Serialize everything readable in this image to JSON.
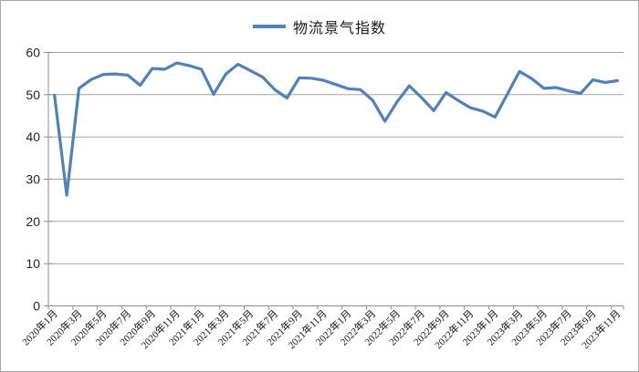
{
  "legend": {
    "label": "物流景气指数"
  },
  "colors": {
    "line": "#4f81bd",
    "grid": "#a3a3a3",
    "axis": "#8c8c8c",
    "text": "#262626",
    "frame_border": "#a6a6a6"
  },
  "chart_data": {
    "type": "line",
    "title": "",
    "xlabel": "",
    "ylabel": "",
    "ylim": [
      0,
      60
    ],
    "y_ticks": [
      0,
      10,
      20,
      30,
      40,
      50,
      60
    ],
    "grid": true,
    "legend_position": "top-center",
    "x": [
      "2020年1月",
      "2020年2月",
      "2020年3月",
      "2020年4月",
      "2020年5月",
      "2020年6月",
      "2020年7月",
      "2020年8月",
      "2020年9月",
      "2020年10月",
      "2020年11月",
      "2020年12月",
      "2021年1月",
      "2021年2月",
      "2021年3月",
      "2021年4月",
      "2021年5月",
      "2021年6月",
      "2021年7月",
      "2021年8月",
      "2021年9月",
      "2021年10月",
      "2021年11月",
      "2021年12月",
      "2022年1月",
      "2022年2月",
      "2022年3月",
      "2022年4月",
      "2022年5月",
      "2022年6月",
      "2022年7月",
      "2022年8月",
      "2022年9月",
      "2022年10月",
      "2022年11月",
      "2022年12月",
      "2023年1月",
      "2023年2月",
      "2023年3月",
      "2023年4月",
      "2023年5月",
      "2023年6月",
      "2023年7月",
      "2023年8月",
      "2023年9月",
      "2023年10月",
      "2023年11月"
    ],
    "x_tick_labels": [
      "2020年1月",
      "2020年3月",
      "2020年5月",
      "2020年7月",
      "2020年9月",
      "2020年11月",
      "2021年1月",
      "2021年3月",
      "2021年5月",
      "2021年7月",
      "2021年9月",
      "2021年11月",
      "2022年1月",
      "2022年3月",
      "2022年5月",
      "2022年7月",
      "2022年9月",
      "2022年11月",
      "2023年1月",
      "2023年3月",
      "2023年5月",
      "2023年7月",
      "2023年9月",
      "2023年11月"
    ],
    "series": [
      {
        "name": "物流景气指数",
        "values": [
          49.9,
          26.2,
          51.5,
          53.6,
          54.8,
          54.9,
          54.6,
          52.2,
          56.2,
          56.0,
          57.5,
          56.9,
          56.0,
          50.1,
          54.9,
          57.2,
          55.7,
          54.2,
          51.2,
          49.2,
          54.0,
          53.9,
          53.4,
          52.4,
          51.4,
          51.2,
          48.7,
          43.7,
          48.3,
          52.1,
          49.3,
          46.2,
          50.5,
          48.6,
          46.9,
          46.1,
          44.7,
          50.1,
          55.5,
          53.8,
          51.5,
          51.7,
          50.9,
          50.3,
          53.5,
          52.9,
          53.3
        ]
      }
    ]
  }
}
